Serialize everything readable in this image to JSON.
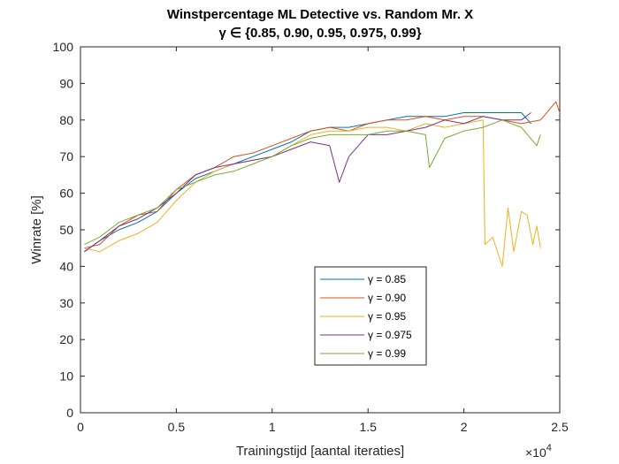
{
  "chart_data": {
    "type": "line",
    "title": "Winstpercentage ML Detective vs. Random Mr. X",
    "subtitle": "γ ∈ {0.85, 0.90, 0.95, 0.975, 0.99}",
    "xlabel": "Trainingstijd [aantal iteraties]",
    "ylabel": "Winrate [%]",
    "x_exponent_label": "×10",
    "x_exponent_power": "4",
    "xlim": [
      0,
      2.5
    ],
    "ylim": [
      0,
      100
    ],
    "x_ticks": [
      0,
      0.5,
      1,
      1.5,
      2,
      2.5
    ],
    "x_tick_labels": [
      "0",
      "0.5",
      "1",
      "1.5",
      "2",
      "2.5"
    ],
    "y_ticks": [
      0,
      10,
      20,
      30,
      40,
      50,
      60,
      70,
      80,
      90,
      100
    ],
    "y_tick_labels": [
      "0",
      "10",
      "20",
      "30",
      "40",
      "50",
      "60",
      "70",
      "80",
      "90",
      "100"
    ],
    "grid": false,
    "legend_position": "inside-bottom-center",
    "series": [
      {
        "name": "γ = 0.85",
        "color": "#0072BD",
        "points": [
          [
            0.02,
            44
          ],
          [
            0.1,
            47
          ],
          [
            0.2,
            50
          ],
          [
            0.3,
            52
          ],
          [
            0.4,
            55
          ],
          [
            0.5,
            60
          ],
          [
            0.6,
            64
          ],
          [
            0.7,
            66
          ],
          [
            0.8,
            68
          ],
          [
            0.9,
            70
          ],
          [
            1.0,
            72
          ],
          [
            1.1,
            74
          ],
          [
            1.2,
            77
          ],
          [
            1.3,
            78
          ],
          [
            1.4,
            78
          ],
          [
            1.5,
            79
          ],
          [
            1.6,
            80
          ],
          [
            1.7,
            81
          ],
          [
            1.8,
            81
          ],
          [
            1.9,
            81
          ],
          [
            2.0,
            82
          ],
          [
            2.1,
            82
          ],
          [
            2.2,
            82
          ],
          [
            2.3,
            82
          ],
          [
            2.35,
            79
          ]
        ]
      },
      {
        "name": "γ = 0.90",
        "color": "#D95319",
        "points": [
          [
            0.02,
            45
          ],
          [
            0.1,
            46
          ],
          [
            0.2,
            51
          ],
          [
            0.3,
            54
          ],
          [
            0.4,
            55
          ],
          [
            0.5,
            61
          ],
          [
            0.6,
            65
          ],
          [
            0.7,
            67
          ],
          [
            0.8,
            70
          ],
          [
            0.9,
            71
          ],
          [
            1.0,
            73
          ],
          [
            1.1,
            75
          ],
          [
            1.2,
            77
          ],
          [
            1.3,
            78
          ],
          [
            1.4,
            77
          ],
          [
            1.5,
            79
          ],
          [
            1.6,
            80
          ],
          [
            1.7,
            80
          ],
          [
            1.8,
            81
          ],
          [
            1.9,
            80
          ],
          [
            2.0,
            81
          ],
          [
            2.1,
            81
          ],
          [
            2.2,
            80
          ],
          [
            2.3,
            79
          ],
          [
            2.4,
            80
          ],
          [
            2.48,
            85
          ],
          [
            2.5,
            82
          ]
        ]
      },
      {
        "name": "γ = 0.95",
        "color": "#EDB120",
        "points": [
          [
            0.02,
            45
          ],
          [
            0.1,
            44
          ],
          [
            0.2,
            47
          ],
          [
            0.3,
            49
          ],
          [
            0.4,
            52
          ],
          [
            0.5,
            58
          ],
          [
            0.6,
            63
          ],
          [
            0.7,
            66
          ],
          [
            0.8,
            68
          ],
          [
            0.9,
            69
          ],
          [
            1.0,
            70
          ],
          [
            1.1,
            73
          ],
          [
            1.2,
            76
          ],
          [
            1.3,
            77
          ],
          [
            1.4,
            77
          ],
          [
            1.5,
            78
          ],
          [
            1.6,
            78
          ],
          [
            1.7,
            77
          ],
          [
            1.8,
            79
          ],
          [
            1.9,
            78
          ],
          [
            2.0,
            79
          ],
          [
            2.1,
            80
          ],
          [
            2.11,
            46
          ],
          [
            2.15,
            48
          ],
          [
            2.2,
            40
          ],
          [
            2.23,
            56
          ],
          [
            2.26,
            44
          ],
          [
            2.3,
            55
          ],
          [
            2.33,
            54
          ],
          [
            2.36,
            46
          ],
          [
            2.38,
            51
          ],
          [
            2.4,
            45
          ]
        ]
      },
      {
        "name": "γ = 0.975",
        "color": "#7E2F8E",
        "points": [
          [
            0.02,
            44
          ],
          [
            0.1,
            47
          ],
          [
            0.2,
            51
          ],
          [
            0.3,
            53
          ],
          [
            0.4,
            56
          ],
          [
            0.5,
            60
          ],
          [
            0.6,
            65
          ],
          [
            0.7,
            67
          ],
          [
            0.8,
            68
          ],
          [
            0.9,
            69
          ],
          [
            1.0,
            70
          ],
          [
            1.1,
            72
          ],
          [
            1.2,
            74
          ],
          [
            1.3,
            73
          ],
          [
            1.35,
            63
          ],
          [
            1.4,
            70
          ],
          [
            1.5,
            76
          ],
          [
            1.6,
            76
          ],
          [
            1.7,
            77
          ],
          [
            1.8,
            78
          ],
          [
            1.9,
            80
          ],
          [
            2.0,
            79
          ],
          [
            2.1,
            81
          ],
          [
            2.2,
            80
          ],
          [
            2.3,
            80
          ],
          [
            2.35,
            82
          ]
        ]
      },
      {
        "name": "γ = 0.99",
        "color": "#77AC30",
        "points": [
          [
            0.02,
            46
          ],
          [
            0.1,
            48
          ],
          [
            0.2,
            52
          ],
          [
            0.3,
            54
          ],
          [
            0.4,
            56
          ],
          [
            0.5,
            61
          ],
          [
            0.6,
            63
          ],
          [
            0.7,
            65
          ],
          [
            0.8,
            66
          ],
          [
            0.9,
            68
          ],
          [
            1.0,
            70
          ],
          [
            1.1,
            73
          ],
          [
            1.2,
            75
          ],
          [
            1.3,
            76
          ],
          [
            1.4,
            76
          ],
          [
            1.5,
            76
          ],
          [
            1.6,
            77
          ],
          [
            1.7,
            77
          ],
          [
            1.8,
            76
          ],
          [
            1.82,
            67
          ],
          [
            1.9,
            75
          ],
          [
            2.0,
            77
          ],
          [
            2.1,
            78
          ],
          [
            2.2,
            80
          ],
          [
            2.3,
            78
          ],
          [
            2.38,
            73
          ],
          [
            2.4,
            76
          ]
        ]
      }
    ]
  }
}
